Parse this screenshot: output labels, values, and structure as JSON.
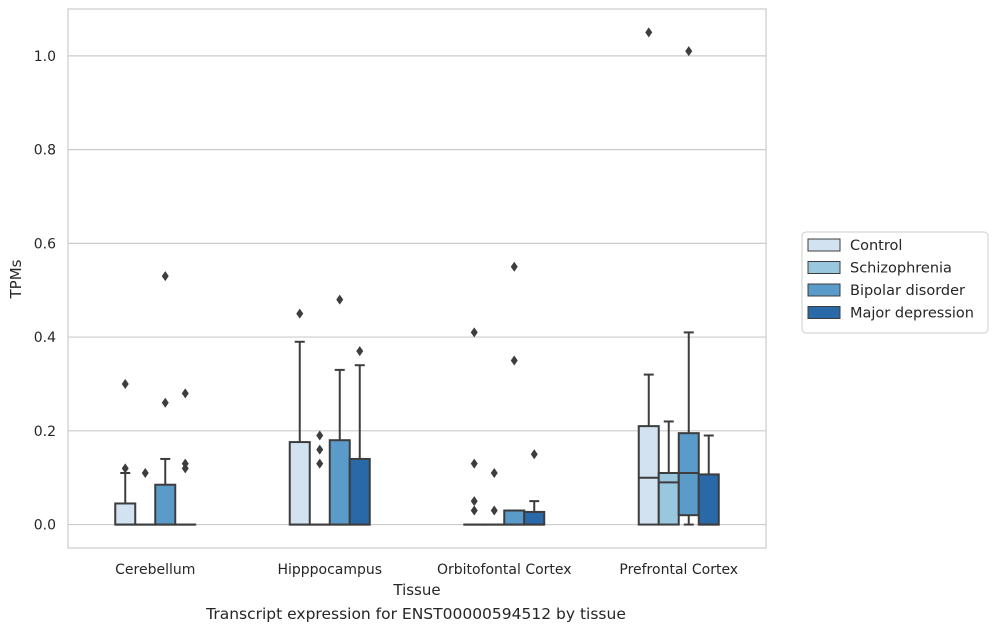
{
  "caption": "Transcript expression for ENST00000594512 by tissue",
  "chart_data": {
    "type": "box",
    "xlabel": "Tissue",
    "ylabel": "TPMs",
    "ylim": [
      -0.05,
      1.1
    ],
    "yticks": [
      "0.0",
      "0.2",
      "0.4",
      "0.6",
      "0.8",
      "1.0"
    ],
    "grid": true,
    "legend_position": "right",
    "categories": [
      "Cerebellum",
      "Hipppocampus",
      "Orbitofontal Cortex",
      "Prefrontal Cortex"
    ],
    "series": [
      {
        "name": "Control",
        "color": "#d3e2f1",
        "boxes": [
          {
            "q1": 0.0,
            "median": 0.0,
            "q3": 0.045,
            "whisker_low": 0.0,
            "whisker_high": 0.11,
            "outliers": [
              0.12,
              0.3
            ]
          },
          {
            "q1": 0.0,
            "median": 0.0,
            "q3": 0.176,
            "whisker_low": 0.0,
            "whisker_high": 0.39,
            "outliers": [
              0.45
            ]
          },
          {
            "q1": 0.0,
            "median": 0.0,
            "q3": 0.0,
            "whisker_low": 0.0,
            "whisker_high": 0.0,
            "outliers": [
              0.03,
              0.05,
              0.13,
              0.41
            ]
          },
          {
            "q1": 0.0,
            "median": 0.1,
            "q3": 0.21,
            "whisker_low": 0.0,
            "whisker_high": 0.32,
            "outliers": [
              1.05
            ]
          }
        ]
      },
      {
        "name": "Schizophrenia",
        "color": "#9ac7e0",
        "boxes": [
          {
            "q1": 0.0,
            "median": 0.0,
            "q3": 0.0,
            "whisker_low": 0.0,
            "whisker_high": 0.0,
            "outliers": [
              0.11
            ]
          },
          {
            "q1": 0.0,
            "median": 0.0,
            "q3": 0.0,
            "whisker_low": 0.0,
            "whisker_high": 0.0,
            "outliers": [
              0.13,
              0.16,
              0.19
            ]
          },
          {
            "q1": 0.0,
            "median": 0.0,
            "q3": 0.0,
            "whisker_low": 0.0,
            "whisker_high": 0.0,
            "outliers": [
              0.03,
              0.11
            ]
          },
          {
            "q1": 0.0,
            "median": 0.09,
            "q3": 0.11,
            "whisker_low": 0.0,
            "whisker_high": 0.22,
            "outliers": []
          }
        ]
      },
      {
        "name": "Bipolar disorder",
        "color": "#5a9bc9",
        "boxes": [
          {
            "q1": 0.0,
            "median": 0.0,
            "q3": 0.085,
            "whisker_low": 0.0,
            "whisker_high": 0.14,
            "outliers": [
              0.26,
              0.53
            ]
          },
          {
            "q1": 0.0,
            "median": 0.0,
            "q3": 0.18,
            "whisker_low": 0.0,
            "whisker_high": 0.33,
            "outliers": [
              0.48
            ]
          },
          {
            "q1": 0.0,
            "median": 0.0,
            "q3": 0.03,
            "whisker_low": 0.0,
            "whisker_high": 0.03,
            "outliers": [
              0.35,
              0.55
            ]
          },
          {
            "q1": 0.02,
            "median": 0.11,
            "q3": 0.195,
            "whisker_low": 0.0,
            "whisker_high": 0.41,
            "outliers": [
              1.01
            ]
          }
        ]
      },
      {
        "name": "Major depression",
        "color": "#2a69a8",
        "boxes": [
          {
            "q1": 0.0,
            "median": 0.0,
            "q3": 0.0,
            "whisker_low": 0.0,
            "whisker_high": 0.0,
            "outliers": [
              0.12,
              0.13,
              0.28
            ]
          },
          {
            "q1": 0.0,
            "median": 0.0,
            "q3": 0.14,
            "whisker_low": 0.0,
            "whisker_high": 0.34,
            "outliers": [
              0.37
            ]
          },
          {
            "q1": 0.0,
            "median": 0.0,
            "q3": 0.027,
            "whisker_low": 0.0,
            "whisker_high": 0.05,
            "outliers": [
              0.15
            ]
          },
          {
            "q1": 0.0,
            "median": 0.0,
            "q3": 0.107,
            "whisker_low": 0.0,
            "whisker_high": 0.19,
            "outliers": []
          }
        ]
      }
    ]
  }
}
